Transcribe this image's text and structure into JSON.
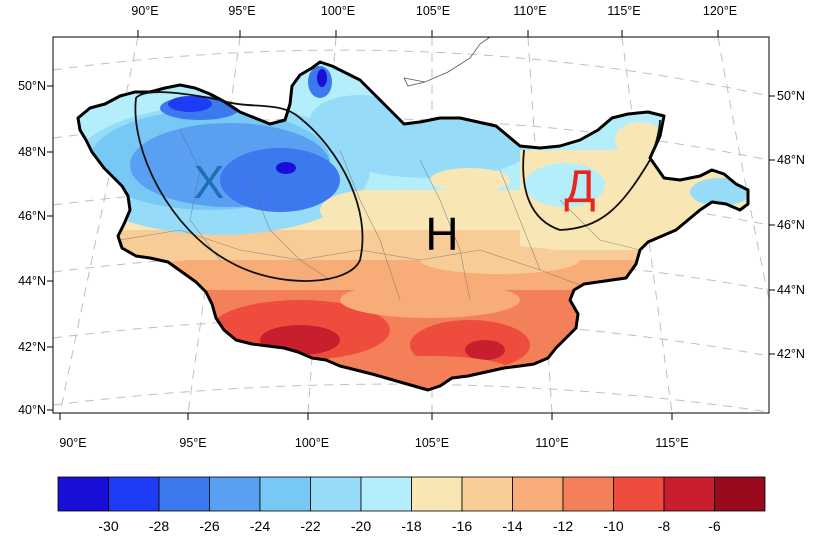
{
  "map": {
    "top_lon_labels": [
      "90°E",
      "95°E",
      "100°E",
      "105°E",
      "110°E",
      "115°E",
      "120°E"
    ],
    "bottom_lon_labels": [
      "90°E",
      "95°E",
      "100°E",
      "105°E",
      "110°E",
      "115°E"
    ],
    "left_lat_labels": [
      "50°N",
      "48°N",
      "46°N",
      "44°N",
      "42°N",
      "40°N"
    ],
    "right_lat_labels": [
      "50°N",
      "48°N",
      "46°N",
      "44°N",
      "42°N"
    ],
    "zones": [
      {
        "label": "Х",
        "color": "#1f6fb5"
      },
      {
        "label": "Н",
        "color": "#000000"
      },
      {
        "label": "Д",
        "color": "#e8261e"
      }
    ]
  },
  "colorbar": {
    "colors": [
      "#1a0fd6",
      "#1e3cf5",
      "#3c78ee",
      "#5aa0f2",
      "#78c8f6",
      "#96dcf8",
      "#b4eefa",
      "#f8e6b4",
      "#f8cc96",
      "#f8ac78",
      "#f4805a",
      "#ee4c3c",
      "#c81e2e",
      "#9a0a1e"
    ],
    "tick_labels": [
      "-30",
      "-28",
      "-26",
      "-24",
      "-22",
      "-20",
      "-18",
      "-16",
      "-14",
      "-12",
      "-10",
      "-8",
      "-6"
    ]
  }
}
